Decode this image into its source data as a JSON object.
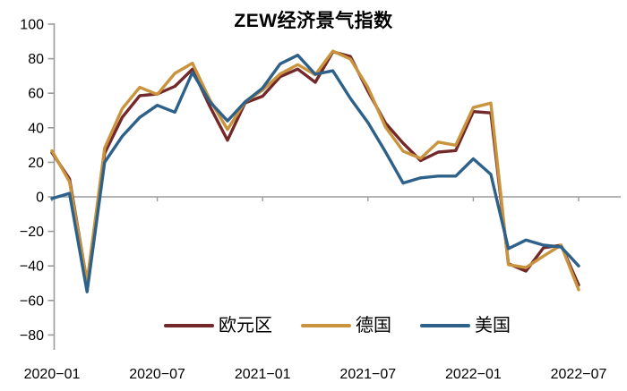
{
  "chart_data": {
    "type": "line",
    "title": "ZEW经济景气指数",
    "x": [
      "2020-01",
      "2020-02",
      "2020-03",
      "2020-04",
      "2020-05",
      "2020-06",
      "2020-07",
      "2020-08",
      "2020-09",
      "2020-10",
      "2020-11",
      "2020-12",
      "2021-01",
      "2021-02",
      "2021-03",
      "2021-04",
      "2021-05",
      "2021-06",
      "2021-07",
      "2021-08",
      "2021-09",
      "2021-10",
      "2021-11",
      "2021-12",
      "2022-01",
      "2022-02",
      "2022-03",
      "2022-04",
      "2022-05",
      "2022-06",
      "2022-07"
    ],
    "x_tick_positions": [
      0,
      6,
      12,
      18,
      24,
      30
    ],
    "x_tick_labels": [
      "2020−01",
      "2020−07",
      "2021−01",
      "2021−07",
      "2022−01",
      "2022−07"
    ],
    "y_ticks": [
      100,
      80,
      60,
      40,
      20,
      0,
      -20,
      -40,
      -60,
      -80
    ],
    "y_tick_labels": [
      "100",
      "80",
      "60",
      "40",
      "20",
      "0",
      "−20",
      "−40",
      "−60",
      "−80"
    ],
    "ylim": [
      -80,
      100
    ],
    "grid": "zero-baseline-only",
    "legend_position": "bottom-center-inside",
    "axis_color": "#9b9b9b",
    "text_color": "#000000",
    "series": [
      {
        "id": "eurozone",
        "name": "欧元区",
        "color": "#73292a",
        "values": [
          25.6,
          10.4,
          -49.5,
          25.2,
          46.0,
          58.6,
          59.6,
          64.0,
          73.9,
          52.3,
          32.8,
          54.4,
          58.3,
          69.6,
          74.0,
          66.3,
          84.0,
          81.3,
          61.2,
          42.7,
          31.1,
          21.0,
          25.9,
          26.8,
          49.4,
          48.6,
          -38.7,
          -43.0,
          -29.5,
          -28.0,
          -51.1
        ]
      },
      {
        "id": "germany",
        "name": "德国",
        "color": "#c9943d",
        "values": [
          26.7,
          8.7,
          -49.5,
          28.2,
          51.0,
          63.4,
          59.3,
          71.5,
          77.4,
          56.1,
          39.0,
          55.0,
          61.8,
          71.2,
          76.6,
          70.7,
          84.4,
          79.8,
          63.3,
          40.4,
          26.5,
          22.3,
          31.7,
          29.9,
          51.7,
          54.3,
          -39.3,
          -41.0,
          -34.3,
          -28.0,
          -53.8
        ]
      },
      {
        "id": "us",
        "name": "美国",
        "color": "#2e6189",
        "values": [
          -1,
          2,
          -55,
          20,
          35,
          46,
          53,
          49,
          72,
          55,
          44,
          55,
          63,
          77,
          82,
          71,
          73,
          57,
          43,
          26,
          8,
          11,
          12,
          12,
          22,
          13,
          -30,
          -25,
          -28,
          -29,
          -40
        ]
      }
    ]
  }
}
